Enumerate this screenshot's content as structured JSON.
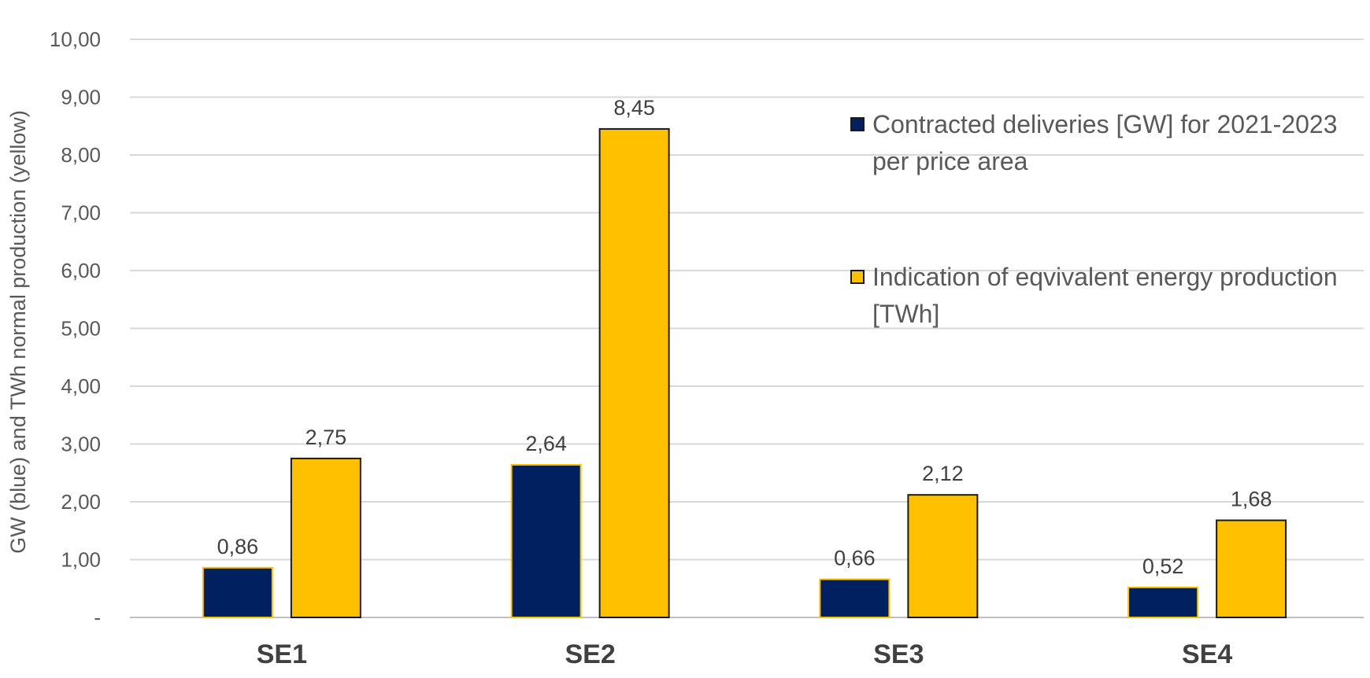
{
  "chart_data": {
    "type": "bar",
    "categories": [
      "SE1",
      "SE2",
      "SE3",
      "SE4"
    ],
    "series": [
      {
        "name": "Contracted deliveries [GW] for 2021-2023 per price area",
        "values": [
          0.86,
          2.64,
          0.66,
          0.52
        ],
        "color": "#002060"
      },
      {
        "name": "Indication of eqvivalent energy production [TWh]",
        "values": [
          2.75,
          8.45,
          2.12,
          1.68
        ],
        "color": "#FFC000"
      }
    ],
    "data_labels": [
      [
        "0,86",
        "2,64",
        "0,66",
        "0,52"
      ],
      [
        "2,75",
        "8,45",
        "2,12",
        "1,68"
      ]
    ],
    "ylabel": "GW (blue) and TWh normal  production (yellow)",
    "xlabel": "",
    "ylim": [
      0,
      10
    ],
    "yticks": [
      0,
      1,
      2,
      3,
      4,
      5,
      6,
      7,
      8,
      9,
      10
    ],
    "ytick_labels": [
      "-",
      "1,00",
      "2,00",
      "3,00",
      "4,00",
      "5,00",
      "6,00",
      "7,00",
      "8,00",
      "9,00",
      "10,00"
    ],
    "grid": true,
    "legend_position": "right",
    "colors": {
      "grid": "#d9d9d9",
      "axis": "#bfbfbf",
      "text": "#595959",
      "category_text": "#404040",
      "bar_blue_border": "#FFC000",
      "bar_yellow_border": "#1a1a1a"
    }
  }
}
